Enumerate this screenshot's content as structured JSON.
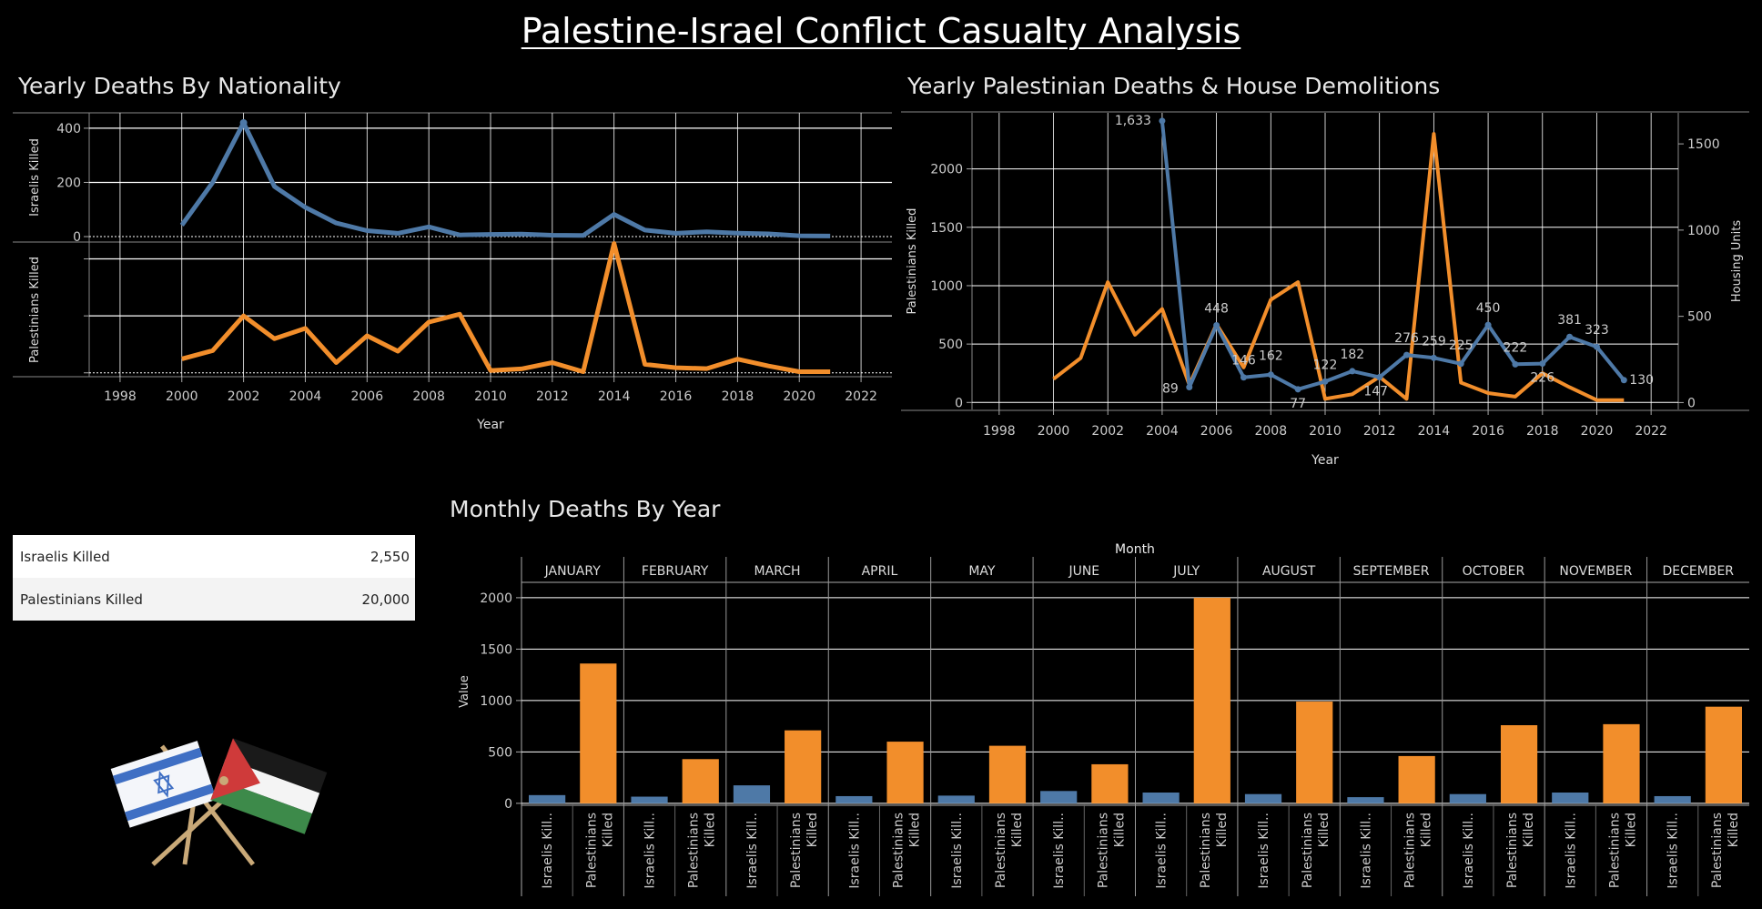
{
  "dashboard_title": "Palestine-Israel Conflict Casualty Analysis",
  "colors": {
    "israel": "#4e79a7",
    "palestine": "#f28e2b",
    "background": "#000000",
    "grid": "#ffffff"
  },
  "kpi": {
    "rows": [
      {
        "label": "Israelis Killed",
        "value": "2,550"
      },
      {
        "label": "Palestinians Killed",
        "value": "20,000"
      }
    ]
  },
  "flag_image": {
    "icon": "crossed-flags-israel-palestine"
  },
  "chart_data": [
    {
      "type": "line",
      "title": "Yearly Deaths By Nationality",
      "xlabel": "Year",
      "xlim": [
        1997,
        2023
      ],
      "x_ticks": [
        "1998",
        "2000",
        "2002",
        "2004",
        "2006",
        "2008",
        "2010",
        "2012",
        "2014",
        "2016",
        "2018",
        "2020",
        "2022"
      ],
      "x": [
        2000,
        2001,
        2002,
        2003,
        2004,
        2005,
        2006,
        2007,
        2008,
        2009,
        2010,
        2011,
        2012,
        2013,
        2014,
        2015,
        2016,
        2017,
        2018,
        2019,
        2020,
        2021
      ],
      "panes": [
        {
          "name": "Israelis Killed",
          "ylabel": "Israelis Killed",
          "ylim": [
            -10,
            440
          ],
          "y_ticks": [
            "0",
            "200",
            "400"
          ],
          "color": "#4e79a7",
          "values": [
            42,
            200,
            420,
            185,
            108,
            50,
            22,
            12,
            36,
            6,
            8,
            9,
            5,
            4,
            82,
            24,
            12,
            18,
            13,
            10,
            3,
            2
          ]
        },
        {
          "name": "Palestinians Killed",
          "ylabel": "Palestinians Killed",
          "ylim": [
            -20,
            2200
          ],
          "y_ticks": [
            "",
            "",
            ""
          ],
          "color": "#f28e2b",
          "values": [
            245,
            390,
            1000,
            600,
            780,
            180,
            650,
            380,
            890,
            1030,
            40,
            70,
            180,
            20,
            2270,
            150,
            90,
            75,
            240,
            120,
            20,
            20
          ]
        }
      ]
    },
    {
      "type": "line",
      "title": "Yearly Palestinian Deaths & House Demolitions",
      "xlabel": "Year",
      "ylabel": "Palestinians Killed",
      "ylabel_right": "Housing Units",
      "xlim": [
        1997,
        2023
      ],
      "ylim": [
        -60,
        2480
      ],
      "ylim_right": [
        -40,
        1680
      ],
      "x_ticks": [
        "1998",
        "2000",
        "2002",
        "2004",
        "2006",
        "2008",
        "2010",
        "2012",
        "2014",
        "2016",
        "2018",
        "2020",
        "2022"
      ],
      "y_ticks": [
        "0",
        "500",
        "1000",
        "1500",
        "2000"
      ],
      "y_ticks_right": [
        "0",
        "500",
        "1000",
        "1500"
      ],
      "series": [
        {
          "name": "Palestinians Killed",
          "color": "#f28e2b",
          "x": [
            2000,
            2001,
            2002,
            2003,
            2004,
            2005,
            2006,
            2007,
            2008,
            2009,
            2010,
            2011,
            2012,
            2013,
            2014,
            2015,
            2016,
            2017,
            2018,
            2019,
            2020,
            2021
          ],
          "values": [
            200,
            380,
            1030,
            580,
            800,
            150,
            670,
            300,
            880,
            1030,
            30,
            70,
            220,
            30,
            2300,
            170,
            80,
            50,
            250,
            130,
            20,
            20
          ]
        },
        {
          "name": "Housing Units",
          "color": "#4e79a7",
          "x": [
            2004,
            2005,
            2006,
            2007,
            2008,
            2009,
            2010,
            2011,
            2012,
            2013,
            2014,
            2015,
            2016,
            2017,
            2018,
            2019,
            2020,
            2021
          ],
          "values": [
            1633,
            89,
            448,
            146,
            162,
            77,
            122,
            182,
            147,
            276,
            259,
            225,
            450,
            222,
            226,
            381,
            323,
            130
          ],
          "labels": [
            "1,633",
            "89",
            "448",
            "146",
            "162",
            "77",
            "122",
            "182",
            "147",
            "276",
            "259",
            "225",
            "450",
            "222",
            "226",
            "381",
            "323",
            "130"
          ]
        }
      ]
    },
    {
      "type": "bar",
      "title": "Monthly Deaths By Year",
      "column_header": "Month",
      "ylabel": "Value",
      "ylim": [
        -10,
        2070
      ],
      "y_ticks": [
        "0",
        "500",
        "1000",
        "1500",
        "2000"
      ],
      "categories": [
        "JANUARY",
        "FEBRUARY",
        "MARCH",
        "APRIL",
        "MAY",
        "JUNE",
        "JULY",
        "AUGUST",
        "SEPTEMBER",
        "OCTOBER",
        "NOVEMBER",
        "DECEMBER"
      ],
      "series": [
        {
          "name": "Israelis Kill..",
          "color": "#4e79a7",
          "values": [
            80,
            65,
            175,
            70,
            75,
            120,
            105,
            90,
            60,
            90,
            105,
            70
          ]
        },
        {
          "name": "Palestinians Killed",
          "color": "#f28e2b",
          "values": [
            1360,
            430,
            710,
            600,
            560,
            380,
            2000,
            990,
            460,
            760,
            770,
            940
          ]
        }
      ]
    }
  ]
}
